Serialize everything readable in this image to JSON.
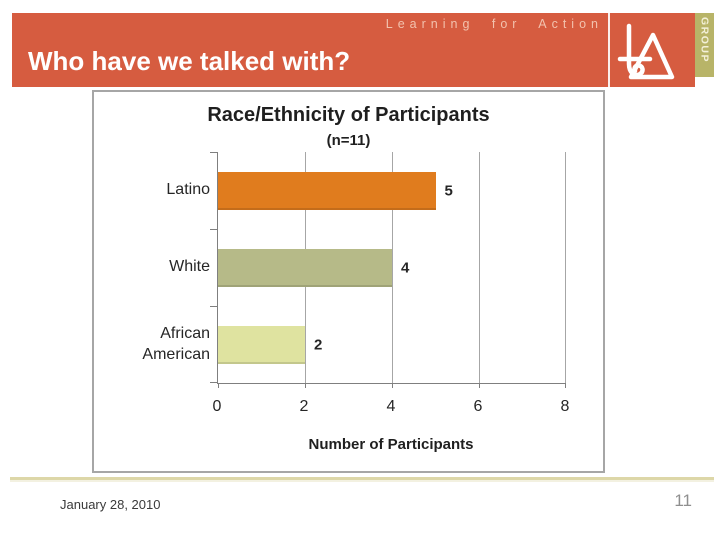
{
  "header": {
    "brand_text": "Learning for Action",
    "title": "Who have we talked with?",
    "group_label": "GROUP"
  },
  "footer": {
    "date": "January 28, 2010",
    "page_number": "11"
  },
  "colors": {
    "header_band": "#d65c40",
    "brand_text": "#f2c2ae",
    "group_strip": "#b8b468",
    "footer_rule": "#ddd7a8",
    "axis": "#7f7f7f",
    "gridline": "#a6a6a6",
    "chart_border": "#a6a6a6",
    "text": "#262626"
  },
  "chart_data": {
    "type": "bar",
    "orientation": "horizontal",
    "title": "Race/Ethnicity of Participants",
    "subtitle": "(n=11)",
    "categories": [
      "Latino",
      "White",
      "African American"
    ],
    "values": [
      5,
      4,
      2
    ],
    "bar_colors": [
      "#e07c1e",
      "#b6ba88",
      "#dfe3a0"
    ],
    "data_labels": [
      "5",
      "4",
      "2"
    ],
    "xlabel": "Number of Participants",
    "xlim": [
      0,
      8
    ],
    "xticks": [
      0,
      2,
      4,
      6,
      8
    ],
    "grid": true,
    "legend_position": "none"
  }
}
